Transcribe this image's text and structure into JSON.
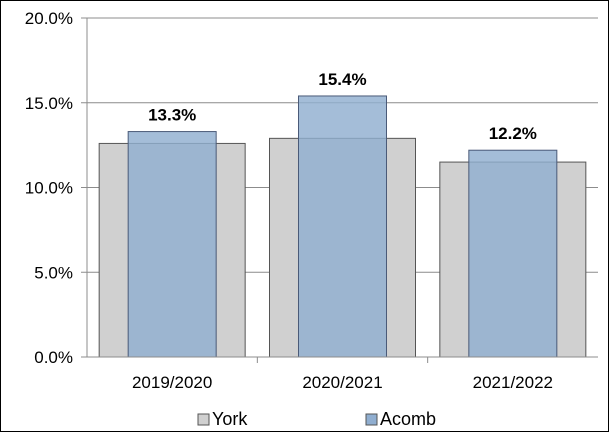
{
  "chart_data": {
    "type": "bar",
    "categories": [
      "2019/2020",
      "2020/2021",
      "2021/2022"
    ],
    "series": [
      {
        "name": "York",
        "values": [
          12.6,
          12.9,
          11.5
        ],
        "color": "#d0d0d0",
        "data_labels": false
      },
      {
        "name": "Acomb",
        "values": [
          13.3,
          15.4,
          12.2
        ],
        "color": "#90aed0",
        "data_labels": true
      }
    ],
    "data_labels": [
      "13.3%",
      "15.4%",
      "12.2%"
    ],
    "y_ticks": [
      0,
      5,
      10,
      15,
      20
    ],
    "y_tick_labels": [
      "0.0%",
      "5.0%",
      "10.0%",
      "15.0%",
      "20.0%"
    ],
    "ylim": [
      0,
      20
    ],
    "title": "",
    "xlabel": "",
    "ylabel": "",
    "grid": true,
    "legend": "bottom",
    "overlap": "series drawn overlapping; Acomb bar narrower, in front of York bar"
  }
}
